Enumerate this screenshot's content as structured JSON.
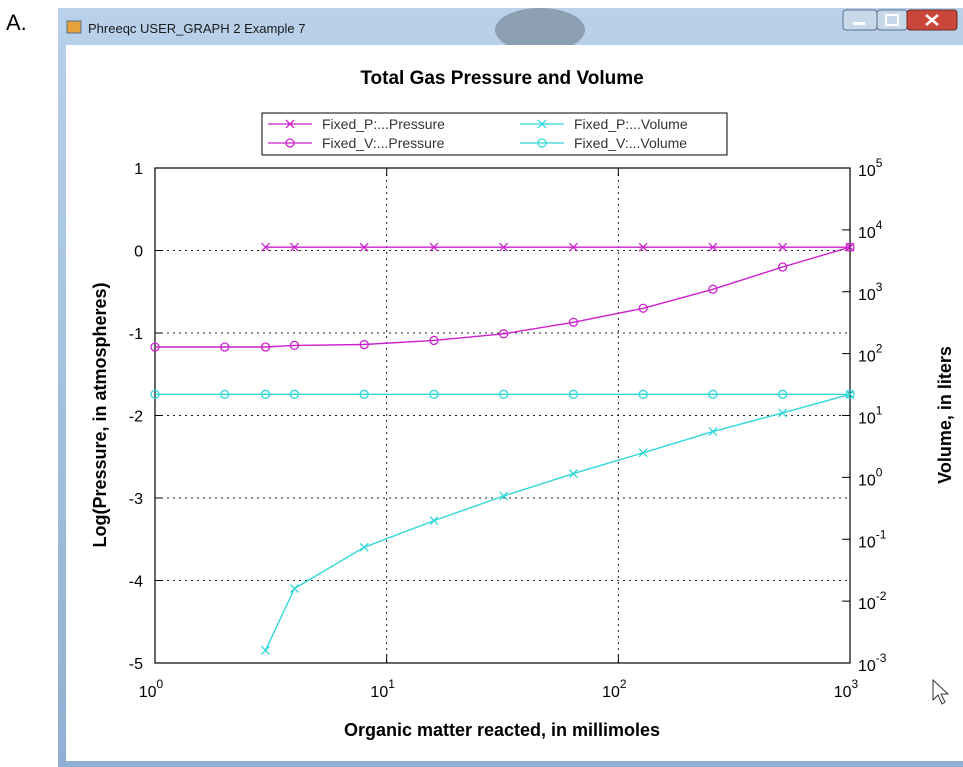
{
  "panel_label": "A.",
  "window_title": "Phreeqc USER_GRAPH 2 Example 7",
  "chart_data": {
    "type": "line",
    "title": "Total Gas Pressure and Volume",
    "xlabel": "Organic matter reacted, in millimoles",
    "ylabel": "Log(Pressure, in atmospheres)",
    "y2label": "Volume, in liters",
    "xlog": true,
    "y2log": true,
    "grid": true,
    "legend": "top",
    "xlim": [
      1,
      1000
    ],
    "xticks": [
      {
        "value": 1,
        "label": "10",
        "power": "0"
      },
      {
        "value": 10,
        "label": "10",
        "power": "1"
      },
      {
        "value": 100,
        "label": "10",
        "power": "2"
      },
      {
        "value": 1000,
        "label": "10",
        "power": "3"
      }
    ],
    "ylim": [
      -5,
      1
    ],
    "yticks": [
      1,
      0,
      -1,
      -2,
      -3,
      -4,
      -5
    ],
    "y2lim": [
      0.001,
      100000
    ],
    "y2ticks": [
      {
        "value": 100000,
        "label": "10",
        "power": "5"
      },
      {
        "value": 10000,
        "label": "10",
        "power": "4"
      },
      {
        "value": 1000,
        "label": "10",
        "power": "3"
      },
      {
        "value": 100,
        "label": "10",
        "power": "2"
      },
      {
        "value": 10,
        "label": "10",
        "power": "1"
      },
      {
        "value": 1,
        "label": "10",
        "power": "0"
      },
      {
        "value": 0.1,
        "label": "10",
        "power": "-1"
      },
      {
        "value": 0.01,
        "label": "10",
        "power": "-2"
      },
      {
        "value": 0.001,
        "label": "10",
        "power": "-3"
      }
    ],
    "series": [
      {
        "name": "Fixed_P:...Pressure",
        "color": "#cc22cc",
        "marker": "x",
        "axis": "y",
        "x": [
          3,
          4,
          8,
          16,
          32,
          64,
          128,
          256,
          512,
          1000
        ],
        "values": [
          0.04,
          0.04,
          0.04,
          0.04,
          0.04,
          0.04,
          0.04,
          0.04,
          0.04,
          0.04
        ]
      },
      {
        "name": "Fixed_V:...Pressure",
        "color": "#cc22cc",
        "marker": "o",
        "axis": "y",
        "x": [
          1,
          2,
          3,
          4,
          8,
          16,
          32,
          64,
          128,
          256,
          512,
          1000
        ],
        "values": [
          -1.17,
          -1.17,
          -1.17,
          -1.15,
          -1.14,
          -1.09,
          -1.01,
          -0.87,
          -0.7,
          -0.47,
          -0.2,
          0.04
        ]
      },
      {
        "name": "Fixed_P:...Volume",
        "color": "#33d8d8",
        "marker": "x",
        "axis": "y2",
        "x": [
          3,
          4,
          8,
          16,
          32,
          64,
          128,
          256,
          512,
          1000
        ],
        "values": [
          0.0016,
          0.016,
          0.074,
          0.2,
          0.5,
          1.15,
          2.5,
          5.5,
          11,
          22
        ]
      },
      {
        "name": "Fixed_V:...Volume",
        "color": "#33d8d8",
        "marker": "o",
        "axis": "y2",
        "x": [
          1,
          2,
          3,
          4,
          8,
          16,
          32,
          64,
          128,
          256,
          512,
          1000
        ],
        "values": [
          22,
          22,
          22,
          22,
          22,
          22,
          22,
          22,
          22,
          22,
          22,
          22
        ]
      }
    ]
  }
}
